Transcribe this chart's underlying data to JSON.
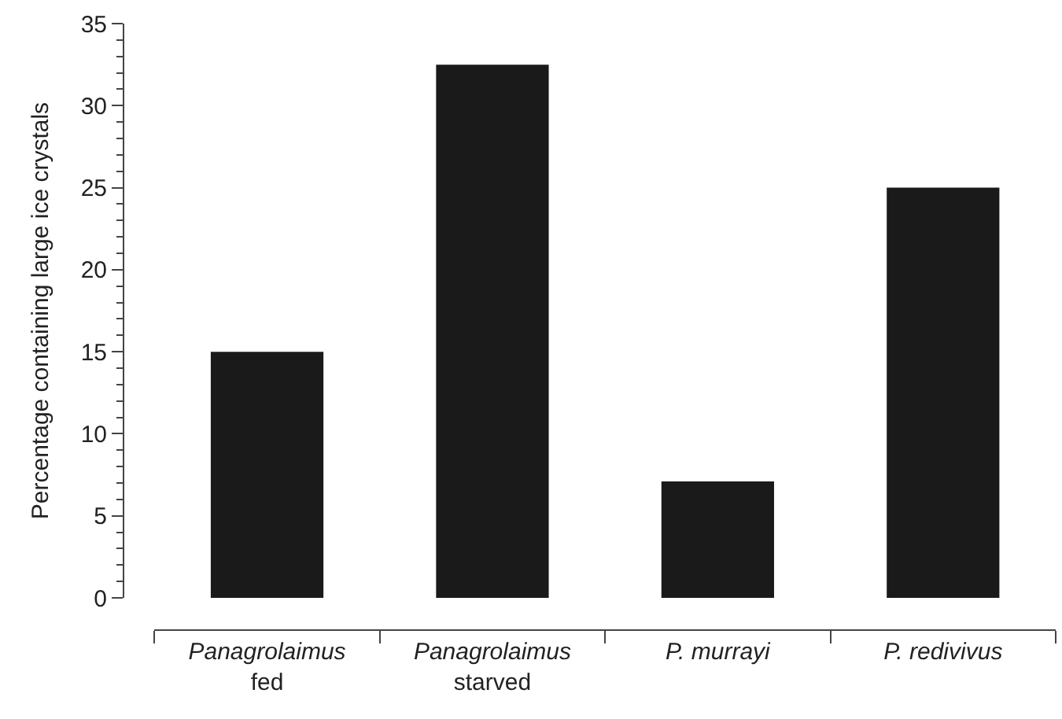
{
  "chart_data": {
    "type": "bar",
    "ylabel": "Percentage containing large ice crystals",
    "categories": [
      "Panagrolaimus\nfed",
      "Panagrolaimus\nstarved",
      "P. murrayi",
      "P. redivivus"
    ],
    "values": [
      15,
      32.5,
      7.1,
      25
    ],
    "color": "#1a1a1a",
    "ylim": [
      0,
      35
    ],
    "yticks": [
      0,
      5,
      10,
      15,
      20,
      25,
      30,
      35
    ]
  }
}
